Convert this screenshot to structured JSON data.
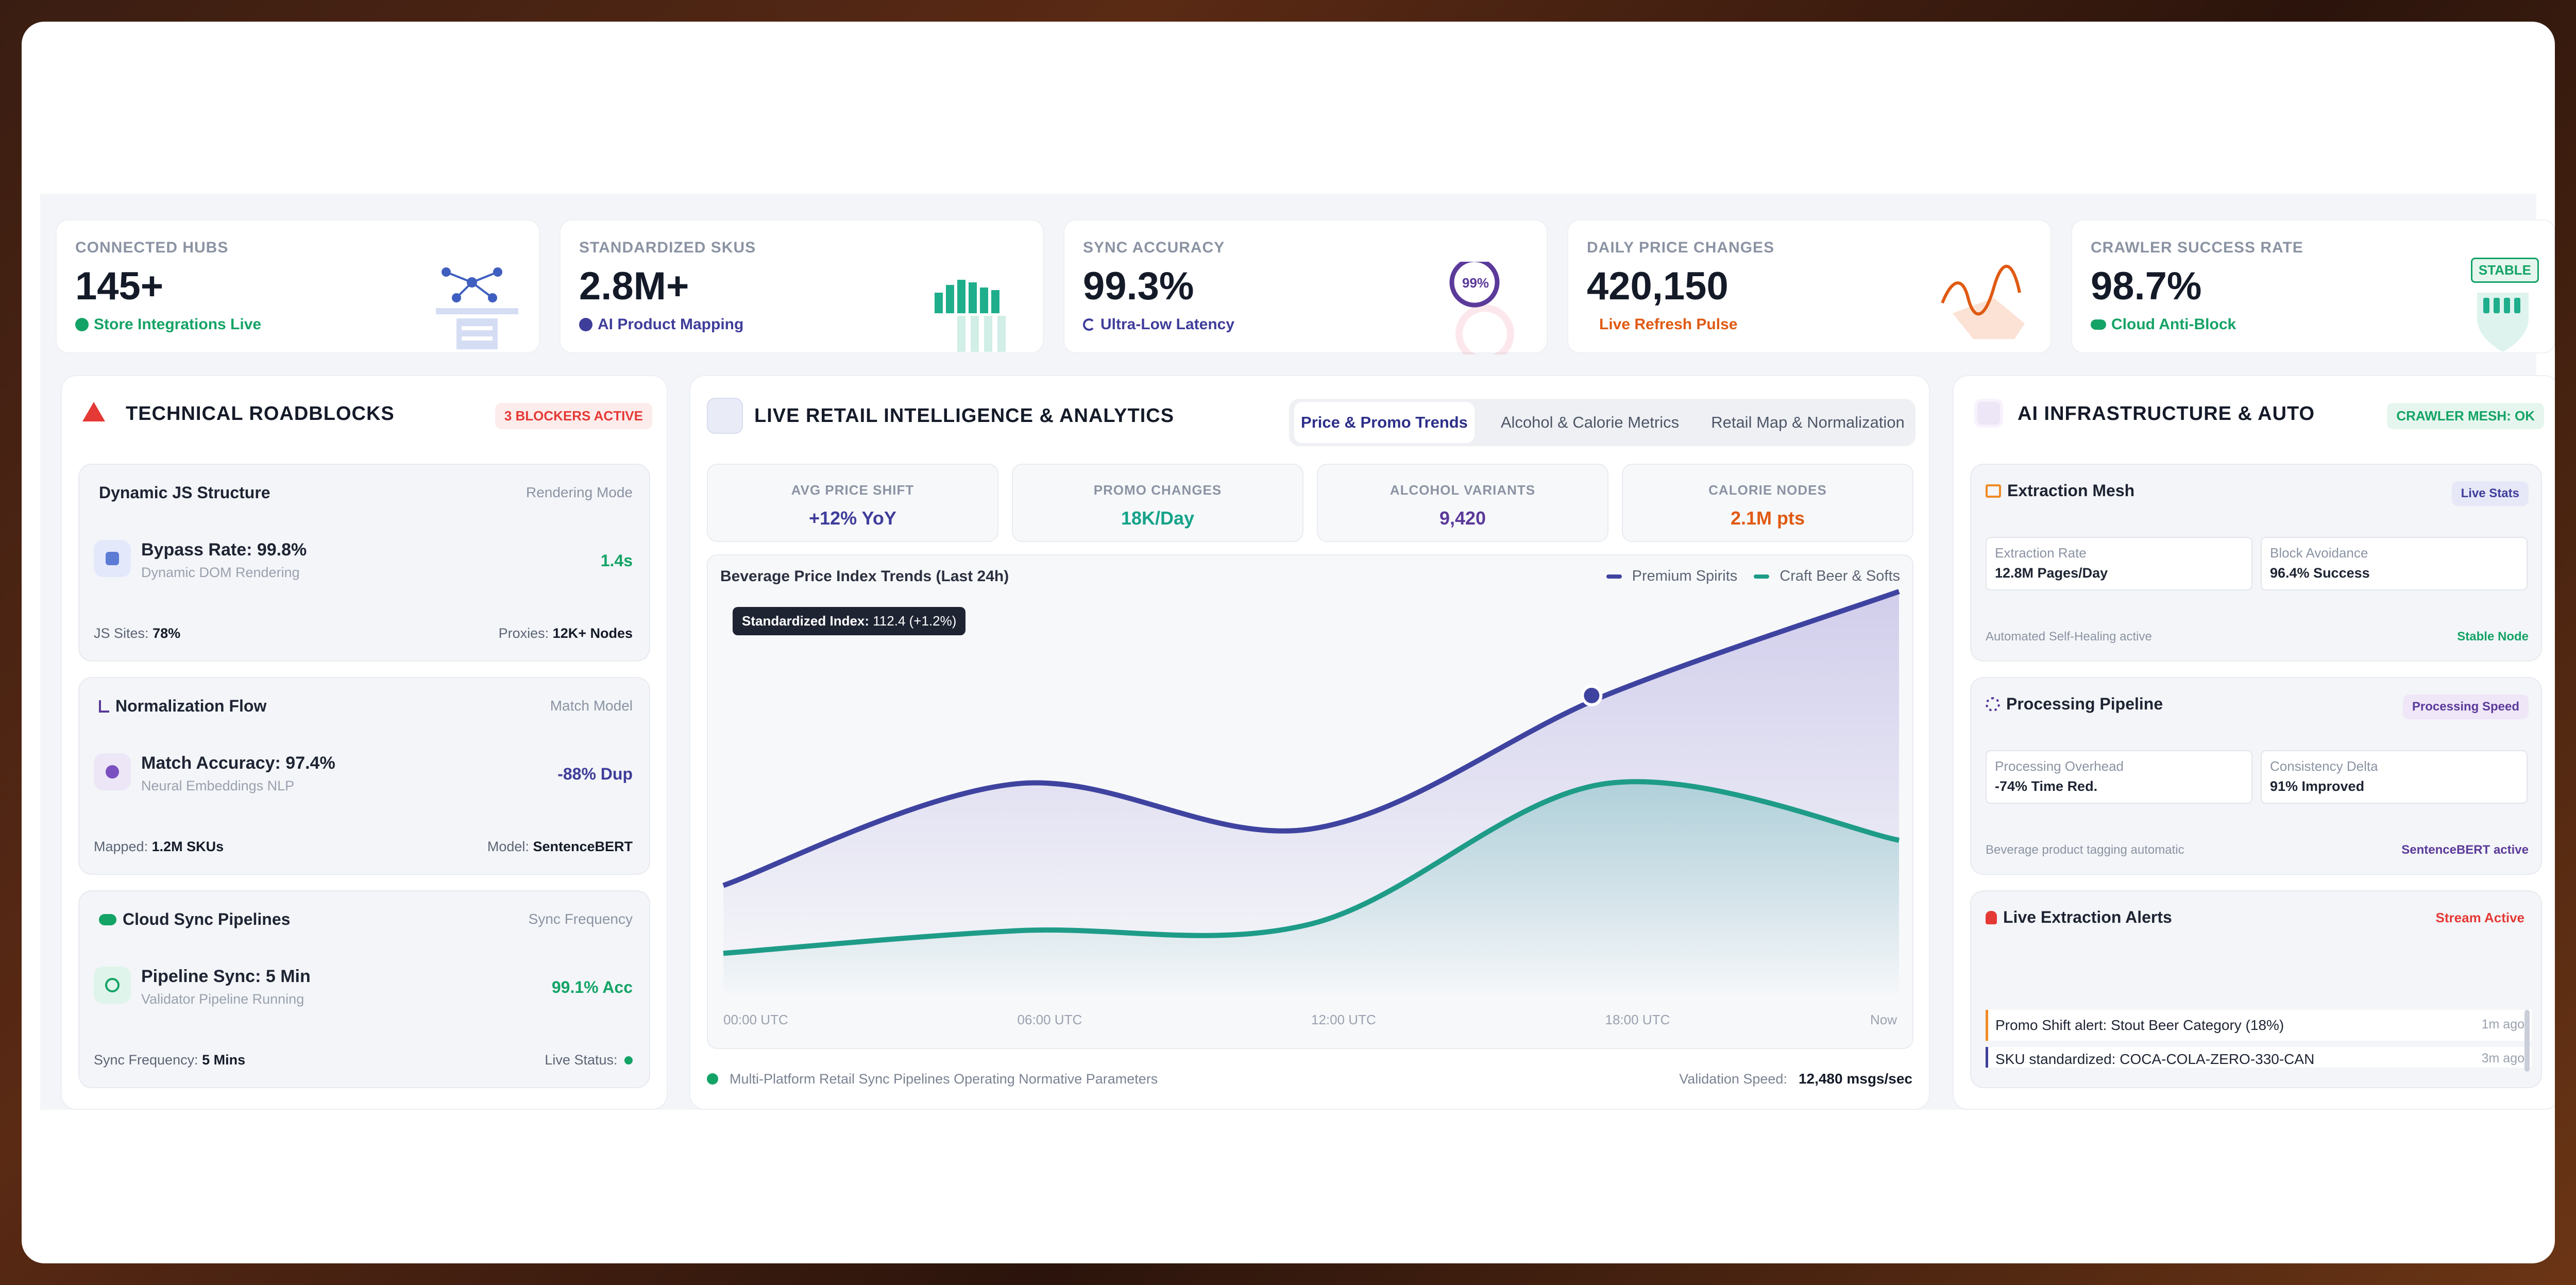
{
  "kpis": [
    {
      "label": "CONNECTED HUBS",
      "value": "145+",
      "sub": "Store Integrations Live",
      "color": "#14a366"
    },
    {
      "label": "STANDARDIZED SKUS",
      "value": "2.8M+",
      "sub": "AI Product Mapping",
      "color": "#3f3d9a"
    },
    {
      "label": "SYNC ACCURACY",
      "value": "99.3%",
      "sub": "Ultra-Low Latency",
      "color": "#3f3d9a",
      "ring": "99%"
    },
    {
      "label": "DAILY PRICE CHANGES",
      "value": "420,150",
      "sub": "Live Refresh Pulse",
      "color": "#e05a12"
    },
    {
      "label": "CRAWLER SUCCESS RATE",
      "value": "98.7%",
      "sub": "Cloud Anti-Block",
      "color": "#14a366",
      "badge": "STABLE"
    }
  ],
  "left": {
    "title": "TECHNICAL ROADBLOCKS",
    "badge": "3 BLOCKERS ACTIVE",
    "cards": [
      {
        "title": "Dynamic JS Structure",
        "meta": "Rendering Mode",
        "main": "Bypass Rate: 99.8%",
        "sub": "Dynamic DOM Rendering",
        "val": "1.4s",
        "valColor": "#14a366",
        "fl_label": "JS Sites:",
        "fl_val": "78%",
        "fr_label": "Proxies:",
        "fr_val": "12K+ Nodes"
      },
      {
        "title": "Normalization Flow",
        "meta": "Match Model",
        "main": "Match Accuracy: 97.4%",
        "sub": "Neural Embeddings NLP",
        "val": "-88% Dup",
        "valColor": "#3f3d9a",
        "fl_label": "Mapped:",
        "fl_val": "1.2M SKUs",
        "fr_label": "Model:",
        "fr_val": "SentenceBERT"
      },
      {
        "title": "Cloud Sync Pipelines",
        "meta": "Sync Frequency",
        "main": "Pipeline Sync: 5 Min",
        "sub": "Validator Pipeline Running",
        "val": "99.1% Acc",
        "valColor": "#14a366",
        "fl_label": "Sync Frequency:",
        "fl_val": "5 Mins",
        "fr_label": "Live Status:",
        "fr_val": ""
      }
    ]
  },
  "center": {
    "title": "LIVE RETAIL INTELLIGENCE & ANALYTICS",
    "tabs": [
      "Price & Promo Trends",
      "Alcohol & Calorie Metrics",
      "Retail Map & Normalization"
    ],
    "minis": [
      {
        "label": "AVG PRICE SHIFT",
        "value": "+12% YoY",
        "color": "#3f3d9a"
      },
      {
        "label": "PROMO CHANGES",
        "value": "18K/Day",
        "color": "#14a38a"
      },
      {
        "label": "ALCOHOL VARIANTS",
        "value": "9,420",
        "color": "#5b3a9a"
      },
      {
        "label": "CALORIE NODES",
        "value": "2.1M pts",
        "color": "#e05a12"
      }
    ],
    "footer": "Multi-Platform Retail Sync Pipelines Operating Normative Parameters",
    "speed_label": "Validation Speed:",
    "speed_val": "12,480 msgs/sec"
  },
  "chart_data": {
    "type": "line",
    "title": "Beverage Price Index Trends (Last 24h)",
    "x": [
      "00:00 UTC",
      "06:00 UTC",
      "12:00 UTC",
      "18:00 UTC",
      "Now"
    ],
    "series": [
      {
        "name": "Premium Spirits",
        "values": [
          104,
          108.5,
          106.5,
          112.4,
          117
        ],
        "color": "#3f43a0"
      },
      {
        "name": "Craft Beer & Softs",
        "values": [
          101,
          102,
          102.3,
          108.5,
          106
        ],
        "color": "#1e9c88"
      }
    ],
    "tooltip_label": "Standardized Index:",
    "tooltip_value": "112.4 (+1.2%)",
    "ylim": [
      99,
      117
    ],
    "grid": false,
    "legend": "top-right"
  },
  "right": {
    "title": "AI INFRASTRUCTURE & AUTO",
    "badge": "CRAWLER MESH: OK",
    "mesh": {
      "title": "Extraction Mesh",
      "badge": "Live Stats",
      "b1l": "Extraction Rate",
      "b1v": "12.8M Pages/Day",
      "b2l": "Block Avoidance",
      "b2v": "96.4% Success",
      "fl": "Automated Self-Healing active",
      "fr": "Stable Node"
    },
    "pipe": {
      "title": "Processing Pipeline",
      "badge": "Processing Speed",
      "b1l": "Processing Overhead",
      "b1v": "-74% Time Red.",
      "b2l": "Consistency Delta",
      "b2v": "91% Improved",
      "fl": "Beverage product tagging automatic",
      "fr": "SentenceBERT active"
    },
    "alerts": {
      "title": "Live Extraction Alerts",
      "badge": "Stream Active",
      "items": [
        {
          "text": "Promo Shift alert: Stout Beer Category (18%)",
          "time": "1m ago"
        },
        {
          "text": "SKU standardized: COCA-COLA-ZERO-330-CAN",
          "time": "3m ago"
        }
      ]
    }
  }
}
